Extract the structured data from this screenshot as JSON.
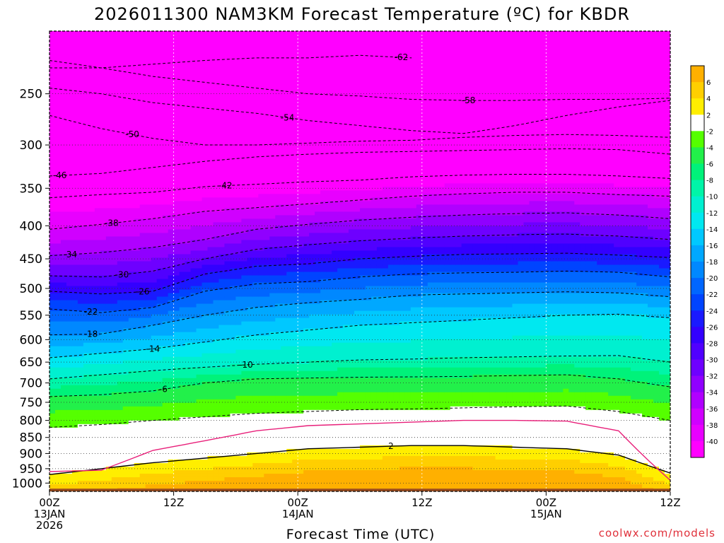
{
  "title": "2026011300 NAM3KM Forecast Temperature (ºC) for KBDR",
  "credit": "coolwx.com/models",
  "chart_data": {
    "type": "heatmap",
    "title": "2026011300 NAM3KM Forecast Temperature (ºC) for KBDR",
    "xlabel": "Forecast Time (UTC)",
    "ylabel": "",
    "y_scale": "pressure (hPa), inverted",
    "ylim": [
      1030,
      200
    ],
    "xlim": [
      0,
      60
    ],
    "x_ticks": [
      {
        "hour": 0,
        "lines": [
          "00Z",
          "13JAN",
          "2026"
        ]
      },
      {
        "hour": 12,
        "lines": [
          "12Z"
        ]
      },
      {
        "hour": 24,
        "lines": [
          "00Z",
          "14JAN"
        ]
      },
      {
        "hour": 36,
        "lines": [
          "12Z"
        ]
      },
      {
        "hour": 48,
        "lines": [
          "00Z",
          "15JAN"
        ]
      },
      {
        "hour": 60,
        "lines": [
          "12Z"
        ]
      }
    ],
    "y_ticks": [
      250,
      300,
      350,
      400,
      450,
      500,
      550,
      600,
      650,
      700,
      750,
      800,
      850,
      900,
      950,
      1000
    ],
    "grid": true,
    "ground_color": "#9b4d20",
    "surface_pressure": 1020,
    "colorbar": {
      "labels": [
        "6",
        "4",
        "2",
        "-2",
        "-4",
        "-6",
        "-8",
        "-10",
        "-12",
        "-14",
        "-16",
        "-18",
        "-20",
        "-22",
        "-24",
        "-26",
        "-28",
        "-30",
        "-32",
        "-34",
        "-36",
        "-38",
        "-40"
      ],
      "bins": [
        {
          "lo": 6,
          "hi": 8,
          "color": "#ffb000"
        },
        {
          "lo": 4,
          "hi": 6,
          "color": "#ffcf00"
        },
        {
          "lo": 2,
          "hi": 4,
          "color": "#ffee00"
        },
        {
          "lo": -2,
          "hi": 2,
          "color": "#ffffff"
        },
        {
          "lo": -4,
          "hi": -2,
          "color": "#55ff00"
        },
        {
          "lo": -6,
          "hi": -4,
          "color": "#22f04a"
        },
        {
          "lo": -8,
          "hi": -6,
          "color": "#00f27a"
        },
        {
          "lo": -10,
          "hi": -8,
          "color": "#00f5a8"
        },
        {
          "lo": -12,
          "hi": -10,
          "color": "#00f0d0"
        },
        {
          "lo": -14,
          "hi": -12,
          "color": "#00e8f0"
        },
        {
          "lo": -16,
          "hi": -14,
          "color": "#00c8ff"
        },
        {
          "lo": -18,
          "hi": -16,
          "color": "#00a8ff"
        },
        {
          "lo": -20,
          "hi": -18,
          "color": "#0088ff"
        },
        {
          "lo": -22,
          "hi": -20,
          "color": "#0066ff"
        },
        {
          "lo": -24,
          "hi": -22,
          "color": "#0044ff"
        },
        {
          "lo": -26,
          "hi": -24,
          "color": "#1a1aff"
        },
        {
          "lo": -28,
          "hi": -26,
          "color": "#3300ff"
        },
        {
          "lo": -30,
          "hi": -28,
          "color": "#5000ff"
        },
        {
          "lo": -32,
          "hi": -30,
          "color": "#6e00ff"
        },
        {
          "lo": -34,
          "hi": -32,
          "color": "#9000ff"
        },
        {
          "lo": -36,
          "hi": -34,
          "color": "#b000ff"
        },
        {
          "lo": -38,
          "hi": -36,
          "color": "#d000ff"
        },
        {
          "lo": -40,
          "hi": -38,
          "color": "#e800ff"
        },
        {
          "lo": -70,
          "hi": -40,
          "color": "#ff00ff"
        }
      ]
    },
    "contours": [
      {
        "value": -62,
        "label": "-62",
        "label_hour": 34,
        "pressure": [
          222,
          228,
          225,
          222,
          220,
          220,
          218,
          220
        ]
      },
      {
        "value": -58,
        "label": "-58",
        "label_hour": 40.5,
        "pressure": [
          228,
          228,
          235,
          240,
          245,
          250,
          252,
          255,
          256,
          256,
          255,
          255,
          254
        ]
      },
      {
        "value": -54,
        "label": "-54",
        "label_hour": 23,
        "pressure": [
          245,
          250,
          258,
          263,
          268,
          275,
          280,
          285,
          288,
          280,
          270,
          262,
          256
        ]
      },
      {
        "value": -50,
        "label": "-50",
        "label_hour": 8,
        "pressure": [
          270,
          283,
          293,
          300,
          300,
          298,
          296,
          295,
          292,
          290,
          289,
          290,
          292
        ]
      },
      {
        "value": -46,
        "label": "-46",
        "label_hour": 1,
        "pressure": [
          335,
          332,
          325,
          318,
          313,
          310,
          308,
          307,
          306,
          305,
          304,
          305,
          310
        ]
      },
      {
        "value": -42,
        "label": "-42",
        "label_hour": 17,
        "pressure": [
          362,
          358,
          355,
          348,
          345,
          342,
          340,
          336,
          334,
          333,
          333,
          335,
          338
        ]
      },
      {
        "value": -38,
        "label": "-38",
        "label_hour": 6,
        "pressure": [
          405,
          398,
          390,
          380,
          375,
          370,
          365,
          360,
          357,
          355,
          355,
          358,
          360
        ]
      },
      {
        "value": -34,
        "label": "-34",
        "label_hour": 2,
        "pressure": [
          445,
          440,
          432,
          420,
          405,
          398,
          392,
          388,
          385,
          383,
          382,
          385,
          390
        ]
      },
      {
        "value": -30,
        "label": "-30",
        "label_hour": 7,
        "pressure": [
          478,
          480,
          470,
          450,
          435,
          428,
          422,
          418,
          415,
          413,
          412,
          415,
          420
        ]
      },
      {
        "value": -26,
        "label": "-26",
        "label_hour": 9,
        "pressure": [
          505,
          510,
          505,
          475,
          462,
          458,
          450,
          446,
          443,
          442,
          441,
          444,
          448
        ]
      },
      {
        "value": -22,
        "label": "-22",
        "label_hour": 4,
        "pressure": [
          538,
          545,
          535,
          505,
          492,
          488,
          480,
          475,
          473,
          472,
          470,
          472,
          480
        ]
      },
      {
        "value": -18,
        "label": "-18",
        "label_hour": 4,
        "pressure": [
          590,
          588,
          570,
          550,
          535,
          526,
          520,
          512,
          510,
          508,
          506,
          508,
          515
        ]
      },
      {
        "value": -14,
        "label": "-14",
        "label_hour": 10,
        "pressure": [
          640,
          630,
          620,
          605,
          590,
          580,
          570,
          565,
          560,
          555,
          550,
          548,
          555
        ]
      },
      {
        "value": -10,
        "label": "-10",
        "label_hour": 19,
        "pressure": [
          690,
          680,
          670,
          662,
          655,
          650,
          645,
          643,
          640,
          638,
          636,
          635,
          650
        ]
      },
      {
        "value": -6,
        "label": "-6",
        "label_hour": 11,
        "pressure": [
          735,
          730,
          720,
          700,
          690,
          688,
          686,
          685,
          684,
          682,
          680,
          690,
          710
        ]
      },
      {
        "value": -2,
        "label": "",
        "label_hour": 0,
        "pressure": [
          820,
          812,
          800,
          790,
          780,
          775,
          770,
          768,
          765,
          762,
          760,
          775,
          800
        ]
      },
      {
        "value": 2,
        "label": "2",
        "label_hour": 33,
        "pressure": [
          970,
          950,
          930,
          915,
          900,
          885,
          880,
          875,
          875,
          880,
          885,
          905,
          965
        ]
      }
    ],
    "contour_hours": [
      0,
      5,
      10,
      15,
      20,
      25,
      30,
      35,
      40,
      45,
      50,
      55,
      60
    ],
    "freezing_line": {
      "value": 0,
      "hours": [
        0,
        5,
        10,
        15,
        20,
        25,
        30,
        35,
        40,
        45,
        50,
        55,
        60
      ],
      "pressure": [
        960,
        955,
        890,
        860,
        830,
        815,
        810,
        805,
        800,
        800,
        802,
        830,
        990
      ]
    }
  }
}
